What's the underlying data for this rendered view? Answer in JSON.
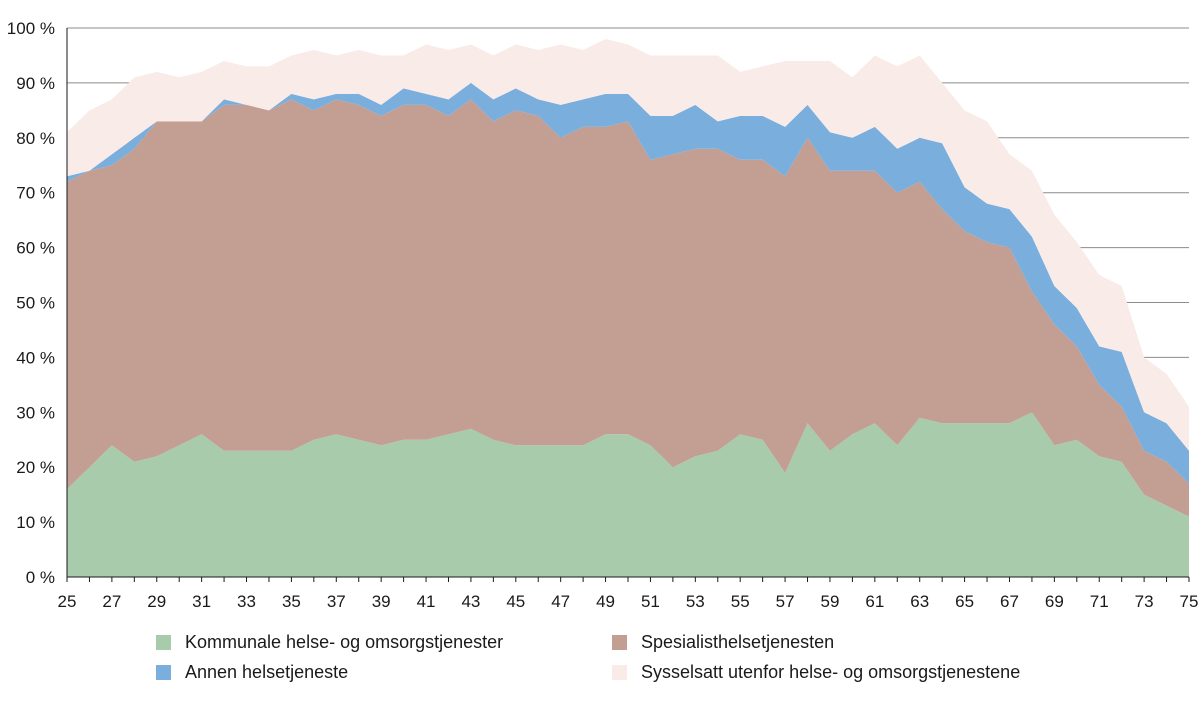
{
  "chart_data": {
    "type": "area",
    "stacked": true,
    "x": [
      25,
      26,
      27,
      28,
      29,
      30,
      31,
      32,
      33,
      34,
      35,
      36,
      37,
      38,
      39,
      40,
      41,
      42,
      43,
      44,
      45,
      46,
      47,
      48,
      49,
      50,
      51,
      52,
      53,
      54,
      55,
      56,
      57,
      58,
      59,
      60,
      61,
      62,
      63,
      64,
      65,
      66,
      67,
      68,
      69,
      70,
      71,
      72,
      73,
      74,
      75
    ],
    "x_tick_labels": [
      "25",
      "27",
      "29",
      "31",
      "33",
      "35",
      "37",
      "39",
      "41",
      "43",
      "45",
      "47",
      "49",
      "51",
      "53",
      "55",
      "57",
      "59",
      "61",
      "63",
      "65",
      "67",
      "69",
      "71",
      "73",
      "75"
    ],
    "y_tick_labels": [
      "0 %",
      "10 %",
      "20 %",
      "30 %",
      "40 %",
      "50 %",
      "60 %",
      "70 %",
      "80 %",
      "90 %",
      "100 %"
    ],
    "ylim": [
      0,
      100
    ],
    "y_unit": "%",
    "grid": "horizontal",
    "legend_position": "bottom",
    "series": [
      {
        "name": "Kommunale helse- og omsorgstjenester",
        "color": "#a8cbac",
        "values": [
          16,
          20,
          24,
          21,
          22,
          24,
          26,
          23,
          23,
          23,
          23,
          25,
          26,
          25,
          24,
          25,
          25,
          26,
          27,
          25,
          24,
          24,
          24,
          24,
          26,
          26,
          24,
          20,
          22,
          23,
          26,
          25,
          19,
          28,
          23,
          26,
          28,
          24,
          29,
          28,
          28,
          28,
          28,
          30,
          24,
          25,
          22,
          21,
          15,
          13,
          11
        ]
      },
      {
        "name": "Spesialisthelsetjenesten",
        "color": "#c39e93",
        "values": [
          56,
          54,
          51,
          57,
          61,
          59,
          57,
          63,
          63,
          62,
          64,
          60,
          61,
          61,
          60,
          61,
          61,
          58,
          60,
          58,
          61,
          60,
          56,
          58,
          56,
          57,
          52,
          57,
          56,
          55,
          50,
          51,
          54,
          52,
          51,
          48,
          46,
          46,
          43,
          39,
          35,
          33,
          32,
          22,
          22,
          17,
          13,
          10,
          8,
          8,
          6
        ]
      },
      {
        "name": "Annen helsetjeneste",
        "color": "#7aaedd",
        "values": [
          1,
          0,
          2,
          2,
          0,
          0,
          0,
          1,
          0,
          0,
          1,
          2,
          1,
          2,
          2,
          3,
          2,
          3,
          3,
          4,
          4,
          3,
          6,
          5,
          6,
          5,
          8,
          7,
          8,
          5,
          8,
          8,
          9,
          6,
          7,
          6,
          8,
          8,
          8,
          12,
          8,
          7,
          7,
          10,
          7,
          7,
          7,
          10,
          7,
          7,
          6
        ]
      },
      {
        "name": "Sysselsatt utenfor helse- og omsorgstjenestene",
        "color": "#f8ebe8",
        "values": [
          8,
          11,
          10,
          11,
          9,
          8,
          9,
          7,
          7,
          8,
          7,
          9,
          7,
          8,
          9,
          6,
          9,
          9,
          7,
          8,
          8,
          9,
          11,
          9,
          10,
          9,
          11,
          11,
          9,
          12,
          8,
          9,
          12,
          8,
          13,
          11,
          13,
          15,
          15,
          11,
          14,
          15,
          10,
          12,
          13,
          12,
          13,
          12,
          10,
          9,
          8
        ]
      }
    ]
  },
  "legend": {
    "items": [
      {
        "label": "Kommunale helse- og omsorgstjenester",
        "color": "#a8cbac"
      },
      {
        "label": "Spesialisthelsetjenesten",
        "color": "#c39e93"
      },
      {
        "label": "Annen helsetjeneste",
        "color": "#7aaedd"
      },
      {
        "label": "Sysselsatt utenfor helse- og omsorgstjenestene",
        "color": "#f8ebe8"
      }
    ]
  }
}
